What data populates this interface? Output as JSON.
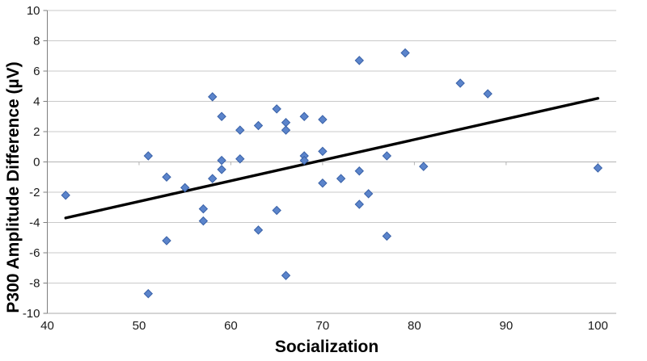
{
  "chart_data": {
    "type": "scatter",
    "title": "",
    "xlabel": "Socialization",
    "ylabel": "P300 Amplitude Difference (µV)",
    "xlim": [
      40,
      102
    ],
    "ylim": [
      -10,
      10
    ],
    "x_ticks": [
      40,
      50,
      60,
      70,
      80,
      90,
      100
    ],
    "y_ticks": [
      10,
      8,
      6,
      4,
      2,
      0,
      -2,
      -4,
      -6,
      -8,
      -10
    ],
    "grid": "horizontal-only",
    "legend": "none",
    "marker": "diamond",
    "points": [
      [
        42,
        -2.2
      ],
      [
        51,
        0.4
      ],
      [
        51,
        -8.7
      ],
      [
        53,
        -1.0
      ],
      [
        53,
        -5.2
      ],
      [
        55,
        -1.7
      ],
      [
        57,
        -3.1
      ],
      [
        57,
        -3.9
      ],
      [
        58,
        4.3
      ],
      [
        58,
        -1.1
      ],
      [
        59,
        3.0
      ],
      [
        59,
        0.1
      ],
      [
        59,
        -0.5
      ],
      [
        61,
        2.1
      ],
      [
        61,
        0.2
      ],
      [
        63,
        2.4
      ],
      [
        63,
        -4.5
      ],
      [
        65,
        3.5
      ],
      [
        65,
        -3.2
      ],
      [
        66,
        2.6
      ],
      [
        66,
        2.1
      ],
      [
        66,
        -7.5
      ],
      [
        68,
        3.0
      ],
      [
        68,
        0.4
      ],
      [
        68,
        0.1
      ],
      [
        70,
        2.8
      ],
      [
        70,
        0.7
      ],
      [
        70,
        -1.4
      ],
      [
        72,
        -1.1
      ],
      [
        74,
        6.7
      ],
      [
        74,
        -0.6
      ],
      [
        74,
        -2.8
      ],
      [
        75,
        -2.1
      ],
      [
        77,
        0.4
      ],
      [
        77,
        -4.9
      ],
      [
        79,
        7.2
      ],
      [
        81,
        -0.3
      ],
      [
        85,
        5.2
      ],
      [
        88,
        4.5
      ],
      [
        100,
        -0.4
      ]
    ],
    "trendline": {
      "type": "linear",
      "x1": 42,
      "y1": -3.7,
      "x2": 100,
      "y2": 4.2
    },
    "colors": {
      "marker_fill": "#5b84cb",
      "marker_stroke": "#3a62a8",
      "trendline": "#000000",
      "gridline": "#c9c9c9",
      "plot_border": "#ababab",
      "zero_axis": "#b3b3b3",
      "axis": "#7f7f7f",
      "tick_label": "#1a1a1a",
      "background": "#ffffff"
    }
  }
}
